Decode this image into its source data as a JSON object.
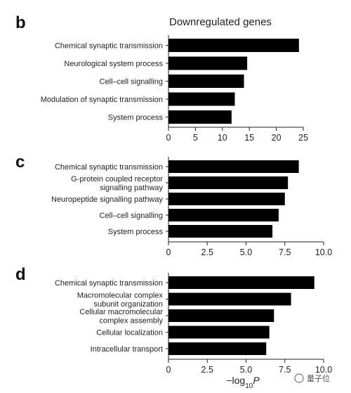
{
  "watermark": "量子位",
  "chart_data": [
    {
      "type": "bar",
      "orientation": "horizontal",
      "panel": "b",
      "title": "Downregulated genes",
      "categories": [
        "Chemical synaptic transmission",
        "Neurological system process",
        "Cell–cell signalling",
        "Modulation of synaptic transmission",
        "System process"
      ],
      "values": [
        24.2,
        14.6,
        14.0,
        12.3,
        11.7
      ],
      "xlim": [
        0,
        25
      ],
      "xticks": [
        "0",
        "5",
        "10",
        "15",
        "20",
        "25"
      ],
      "xlabel": "",
      "bar_color": "#000000"
    },
    {
      "type": "bar",
      "orientation": "horizontal",
      "panel": "c",
      "title": "",
      "categories": [
        "Chemical synaptic transmission",
        "G-protein coupled receptor\nsignalling pathway",
        "Neuropeptide signalling pathway",
        "Cell–cell signalling",
        "System process"
      ],
      "values": [
        8.4,
        7.7,
        7.5,
        7.1,
        6.7
      ],
      "xlim": [
        0,
        10
      ],
      "xticks": [
        "0",
        "2.5",
        "5.0",
        "7.5",
        "10.0"
      ],
      "xlabel": "",
      "bar_color": "#000000"
    },
    {
      "type": "bar",
      "orientation": "horizontal",
      "panel": "d",
      "title": "",
      "categories": [
        "Chemical synaptic transmission",
        "Macromolecular complex\nsubunit organization",
        "Cellular macromolecular\ncomplex assembly",
        "Cellular localization",
        "Intracellular transport"
      ],
      "values": [
        9.4,
        7.9,
        6.8,
        6.5,
        6.3
      ],
      "xlim": [
        0,
        10
      ],
      "xticks": [
        "0",
        "2.5",
        "5.0",
        "7.5",
        "10.0"
      ],
      "xlabel": "−log10P",
      "bar_color": "#000000"
    }
  ]
}
